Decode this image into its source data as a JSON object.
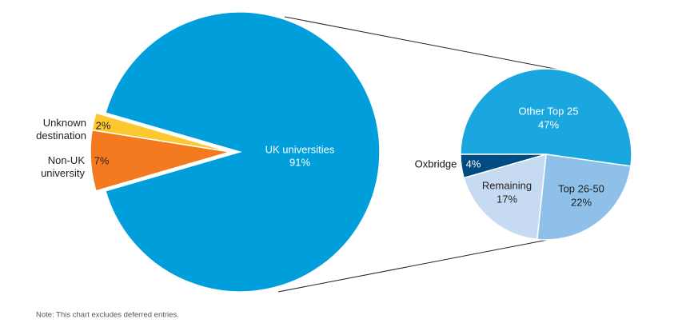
{
  "chart_data": [
    {
      "type": "pie",
      "categories": [
        "UK universities",
        "Non-UK university",
        "Unknown destination"
      ],
      "values": [
        91,
        7,
        2
      ],
      "value_labels": [
        "91%",
        "7%",
        "2%"
      ],
      "colors": [
        "#009fdb",
        "#f47a20",
        "#fdc82f"
      ],
      "exploded": [
        false,
        true,
        true
      ]
    },
    {
      "type": "pie",
      "categories": [
        "Other Top 25",
        "Top 26-50",
        "Remaining",
        "Oxbridge"
      ],
      "values": [
        47,
        22,
        17,
        4
      ],
      "value_labels": [
        "47%",
        "22%",
        "17%",
        "4%"
      ],
      "colors": [
        "#1aa7e0",
        "#8fc0e9",
        "#c6dbf2",
        "#004b82"
      ],
      "exploded": [
        false,
        false,
        false,
        false
      ]
    }
  ],
  "note": "Note: This chart excludes deferred entries."
}
